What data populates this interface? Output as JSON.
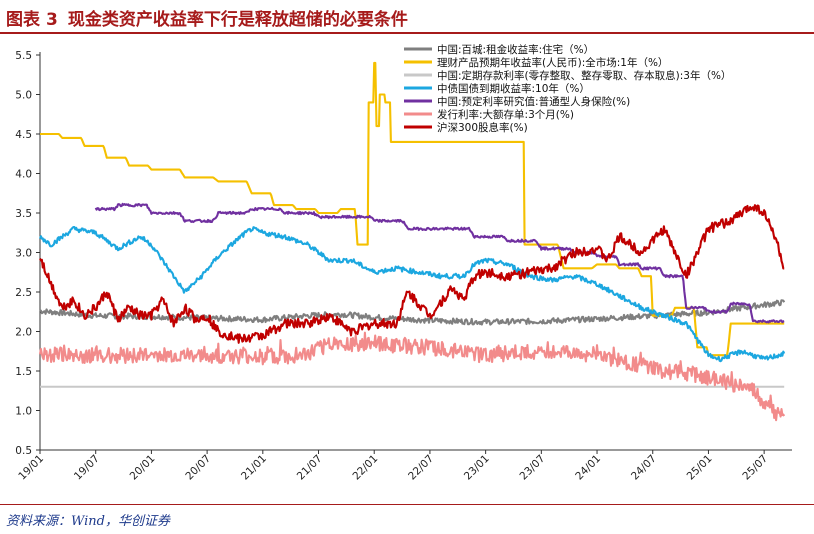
{
  "header": {
    "label": "图表",
    "number": "3",
    "text": "现金类资产收益率下行是释放超储的必要条件"
  },
  "source": "资料来源：Wind，华创证券",
  "chart_data": {
    "type": "line",
    "title": "现金类资产收益率下行是释放超储的必要条件",
    "xlabel": "",
    "ylabel": "",
    "ylim": [
      0.5,
      5.5
    ],
    "yticks": [
      "0.5",
      "1.0",
      "1.5",
      "2.0",
      "2.5",
      "3.0",
      "3.5",
      "4.0",
      "4.5",
      "5.0",
      "5.5"
    ],
    "xlim": [
      2019.0,
      2025.75
    ],
    "xticks": [
      "19/01",
      "19/07",
      "20/01",
      "20/07",
      "21/01",
      "21/07",
      "22/01",
      "22/07",
      "23/01",
      "23/07",
      "24/01",
      "24/07",
      "25/01",
      "25/07"
    ],
    "legend_position": "top-right",
    "series": [
      {
        "name": "中国:百城:租金收益率:住宅（%）",
        "color": "#7f7f7f",
        "x": [
          2019.0,
          2019.5,
          2020.0,
          2020.5,
          2021.0,
          2021.4,
          2021.7,
          2022.0,
          2022.5,
          2023.0,
          2023.5,
          2024.0,
          2024.5,
          2025.0,
          2025.4,
          2025.68
        ],
        "values": [
          2.26,
          2.2,
          2.19,
          2.17,
          2.15,
          2.2,
          2.22,
          2.18,
          2.14,
          2.12,
          2.13,
          2.16,
          2.2,
          2.24,
          2.32,
          2.37
        ]
      },
      {
        "name": "理财产品预期年收益率(人民币):全市场:1年（%）",
        "color": "#f5c000",
        "x": [
          2019.0,
          2019.2,
          2019.4,
          2019.6,
          2019.8,
          2020.0,
          2020.3,
          2020.6,
          2020.9,
          2021.1,
          2021.3,
          2021.5,
          2021.7,
          2021.85,
          2021.9,
          2021.95,
          2022.0,
          2022.02,
          2022.05,
          2022.1,
          2022.15,
          2022.2,
          2022.6,
          2023.0,
          2023.3,
          2023.35,
          2023.7,
          2024.0,
          2024.2,
          2024.4,
          2024.5,
          2024.7,
          2024.9,
          2025.0,
          2025.2,
          2025.4,
          2025.68
        ],
        "values": [
          4.5,
          4.45,
          4.35,
          4.2,
          4.1,
          4.05,
          3.95,
          3.9,
          3.75,
          3.6,
          3.55,
          3.5,
          3.55,
          3.1,
          3.1,
          4.9,
          5.4,
          4.6,
          5.0,
          4.9,
          4.4,
          4.4,
          4.4,
          4.4,
          4.4,
          3.1,
          2.8,
          2.85,
          2.8,
          2.7,
          2.2,
          2.3,
          1.8,
          1.7,
          2.1,
          2.1,
          2.1
        ]
      },
      {
        "name": "中国:定期存款利率(零存整取、整存零取、存本取息):3年（%）",
        "color": "#c8c8c8",
        "x": [
          2019.0,
          2025.68
        ],
        "values": [
          1.3,
          1.3
        ]
      },
      {
        "name": "中债国债到期收益率:10年（%）",
        "color": "#1ca7e0",
        "x": [
          2019.0,
          2019.1,
          2019.3,
          2019.5,
          2019.7,
          2019.9,
          2020.0,
          2020.15,
          2020.3,
          2020.45,
          2020.6,
          2020.8,
          2020.9,
          2021.0,
          2021.2,
          2021.4,
          2021.6,
          2021.8,
          2022.0,
          2022.2,
          2022.4,
          2022.6,
          2022.8,
          2022.9,
          2023.0,
          2023.2,
          2023.4,
          2023.6,
          2023.8,
          2024.0,
          2024.2,
          2024.4,
          2024.6,
          2024.8,
          2025.0,
          2025.1,
          2025.3,
          2025.5,
          2025.68
        ],
        "values": [
          3.2,
          3.1,
          3.3,
          3.25,
          3.05,
          3.2,
          3.1,
          2.8,
          2.5,
          2.7,
          2.95,
          3.2,
          3.3,
          3.25,
          3.2,
          3.1,
          2.9,
          2.9,
          2.75,
          2.8,
          2.75,
          2.7,
          2.7,
          2.85,
          2.9,
          2.85,
          2.7,
          2.65,
          2.7,
          2.6,
          2.45,
          2.3,
          2.2,
          2.1,
          1.7,
          1.65,
          1.75,
          1.65,
          1.72
        ]
      },
      {
        "name": "中国:预定利率研究值:普通型人身保险(%)",
        "color": "#7030a0",
        "x": [
          2019.5,
          2019.7,
          2020.0,
          2020.3,
          2020.6,
          2020.9,
          2021.2,
          2021.5,
          2021.8,
          2022.0,
          2022.3,
          2022.6,
          2022.9,
          2023.2,
          2023.5,
          2023.8,
          2024.0,
          2024.2,
          2024.4,
          2024.6,
          2024.8,
          2025.0,
          2025.2,
          2025.4,
          2025.68
        ],
        "values": [
          3.55,
          3.6,
          3.5,
          3.4,
          3.5,
          3.55,
          3.5,
          3.45,
          3.45,
          3.4,
          3.3,
          3.3,
          3.2,
          3.15,
          3.05,
          3.0,
          2.95,
          2.85,
          2.8,
          2.7,
          2.3,
          2.25,
          2.35,
          2.13,
          2.13
        ]
      },
      {
        "name": "发行利率:大额存单:3个月(%)",
        "color": "#f28b8b",
        "x": [
          2019.0,
          2019.5,
          2020.0,
          2020.5,
          2021.0,
          2021.4,
          2021.6,
          2022.0,
          2022.5,
          2023.0,
          2023.5,
          2024.0,
          2024.3,
          2024.6,
          2024.9,
          2025.2,
          2025.4,
          2025.55,
          2025.68
        ],
        "values": [
          1.7,
          1.7,
          1.7,
          1.68,
          1.68,
          1.7,
          1.85,
          1.85,
          1.8,
          1.7,
          1.75,
          1.7,
          1.6,
          1.5,
          1.45,
          1.35,
          1.25,
          1.0,
          0.93
        ]
      },
      {
        "name": "沪深300股息率(%)",
        "color": "#c00000",
        "x": [
          2019.0,
          2019.1,
          2019.2,
          2019.3,
          2019.4,
          2019.5,
          2019.6,
          2019.7,
          2019.8,
          2019.9,
          2020.0,
          2020.1,
          2020.2,
          2020.3,
          2020.4,
          2020.5,
          2020.6,
          2020.8,
          2021.0,
          2021.2,
          2021.4,
          2021.6,
          2021.8,
          2022.0,
          2022.2,
          2022.3,
          2022.5,
          2022.7,
          2022.8,
          2022.9,
          2023.0,
          2023.2,
          2023.4,
          2023.6,
          2023.8,
          2024.0,
          2024.1,
          2024.2,
          2024.4,
          2024.6,
          2024.8,
          2025.0,
          2025.2,
          2025.4,
          2025.5,
          2025.6,
          2025.68
        ],
        "values": [
          2.95,
          2.6,
          2.3,
          2.4,
          2.2,
          2.3,
          2.5,
          2.15,
          2.3,
          2.2,
          2.2,
          2.4,
          2.1,
          2.3,
          2.15,
          2.2,
          2.0,
          1.9,
          1.95,
          2.1,
          2.1,
          2.2,
          2.0,
          2.1,
          2.1,
          2.5,
          2.2,
          2.55,
          2.4,
          2.7,
          2.75,
          2.7,
          2.75,
          2.8,
          3.0,
          3.05,
          2.9,
          3.2,
          3.0,
          3.3,
          2.7,
          3.3,
          3.4,
          3.6,
          3.5,
          3.2,
          2.8
        ]
      }
    ]
  }
}
